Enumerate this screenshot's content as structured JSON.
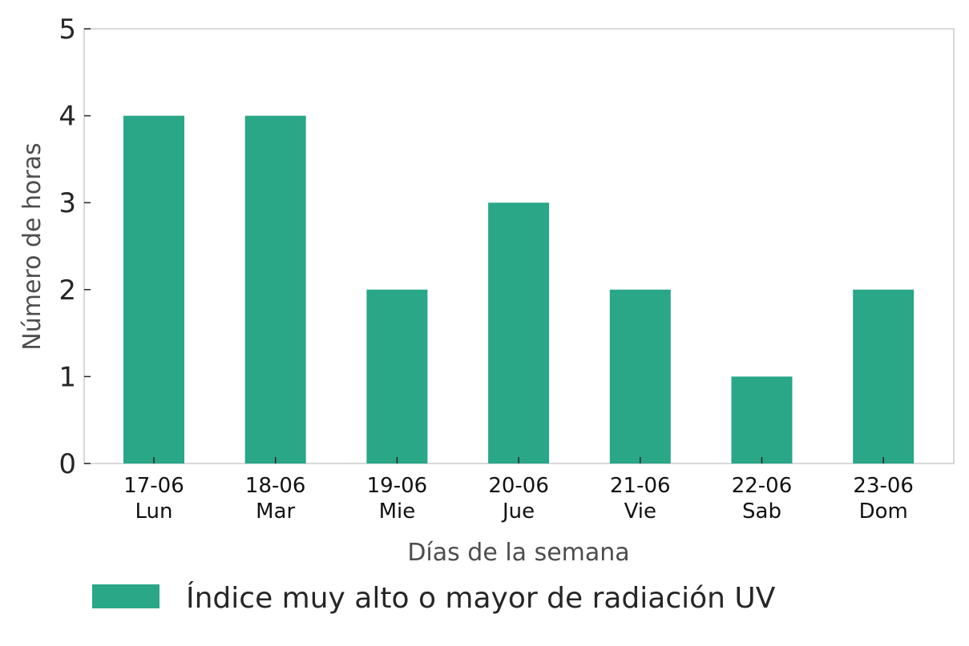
{
  "chart_data": {
    "type": "bar",
    "categories": [
      [
        "17-06",
        "Lun"
      ],
      [
        "18-06",
        "Mar"
      ],
      [
        "19-06",
        "Mie"
      ],
      [
        "20-06",
        "Jue"
      ],
      [
        "21-06",
        "Vie"
      ],
      [
        "22-06",
        "Sab"
      ],
      [
        "23-06",
        "Dom"
      ]
    ],
    "series": [
      {
        "name": "Índice muy alto o mayor de radiación UV",
        "values": [
          4,
          4,
          2,
          3,
          2,
          1,
          2
        ],
        "color": "#29a787"
      }
    ],
    "xlabel": "Días de la semana",
    "ylabel": "Número de horas",
    "ylim": [
      0,
      5
    ],
    "yticks": [
      "0",
      "1",
      "2",
      "3",
      "4",
      "5"
    ],
    "grid": false,
    "legend_position": "bottom"
  }
}
